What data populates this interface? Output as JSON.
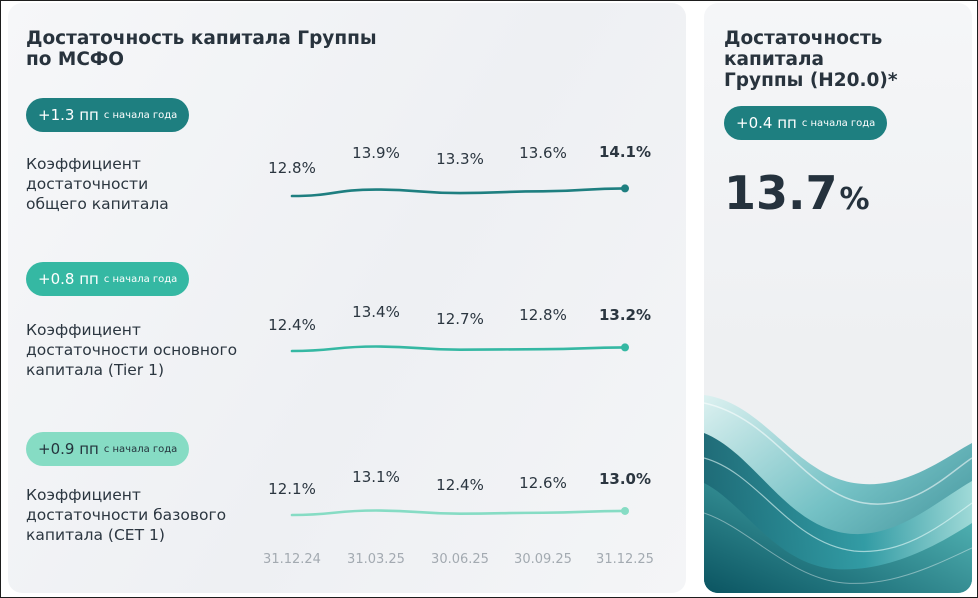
{
  "left_panel": {
    "title_lines": [
      "Достаточность капитала Группы",
      "по МСФО"
    ]
  },
  "right_panel": {
    "title_lines": [
      "Достаточность капитала",
      "Группы (Н20.0)*"
    ],
    "badge": {
      "change": "+0.4 пп",
      "suffix": "с начала года"
    },
    "value": "13.7",
    "unit": "%"
  },
  "colors": {
    "total": "#1e7f80",
    "tier1": "#35b8a3",
    "cet1": "#86dcc4",
    "text": "#25323d",
    "axis": "#a3aab1"
  },
  "chart_data": [
    {
      "type": "line",
      "badge": {
        "change": "+1.3 пп",
        "suffix": "с начала года"
      },
      "label_lines": [
        "Коэффициент",
        "достаточности",
        "общего капитала"
      ],
      "x": [
        "31.12.24",
        "31.03.25",
        "30.06.25",
        "30.09.25",
        "31.12.25"
      ],
      "values": [
        12.8,
        13.9,
        13.3,
        13.6,
        14.1
      ],
      "value_labels": [
        "12.8%",
        "13.9%",
        "13.3%",
        "13.6%",
        "14.1%"
      ],
      "color": "#1e7f80"
    },
    {
      "type": "line",
      "badge": {
        "change": "+0.8 пп",
        "suffix": "с начала года"
      },
      "label_lines": [
        "Коэффициент",
        "достаточности основного",
        "капитала (Tier 1)"
      ],
      "x": [
        "31.12.24",
        "31.03.25",
        "30.06.25",
        "30.09.25",
        "31.12.25"
      ],
      "values": [
        12.4,
        13.4,
        12.7,
        12.8,
        13.2
      ],
      "value_labels": [
        "12.4%",
        "13.4%",
        "12.7%",
        "12.8%",
        "13.2%"
      ],
      "color": "#35b8a3"
    },
    {
      "type": "line",
      "badge": {
        "change": "+0.9 пп",
        "suffix": "с начала года"
      },
      "label_lines": [
        "Коэффициент",
        "достаточности базового",
        "капитала (CET 1)"
      ],
      "x": [
        "31.12.24",
        "31.03.25",
        "30.06.25",
        "30.09.25",
        "31.12.25"
      ],
      "values": [
        12.1,
        13.1,
        12.4,
        12.6,
        13.0
      ],
      "value_labels": [
        "12.1%",
        "13.1%",
        "12.4%",
        "12.6%",
        "13.0%"
      ],
      "color": "#86dcc4"
    }
  ]
}
